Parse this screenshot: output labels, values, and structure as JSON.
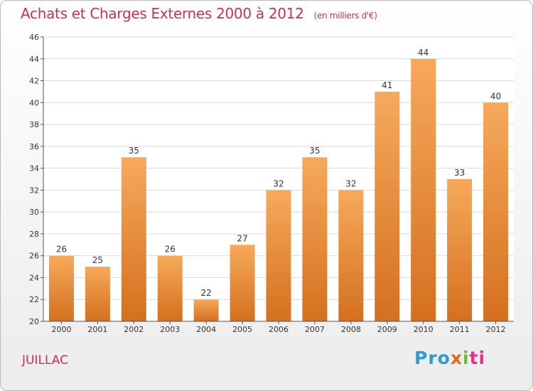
{
  "header": {
    "title": "Achats et Charges Externes 2000 à 2012",
    "unit": "(en milliers d'€)"
  },
  "footer": {
    "commune": "JUILLAC",
    "logo_parts": [
      "Pro",
      "x",
      "i",
      "ti"
    ]
  },
  "colors": {
    "title": "#d0304a",
    "bar_light": "#f7a95b",
    "bar_dark": "#d4701f",
    "grid": "#d9d9d9"
  },
  "chart_data": {
    "type": "bar",
    "categories": [
      "2000",
      "2001",
      "2002",
      "2003",
      "2004",
      "2005",
      "2006",
      "2007",
      "2008",
      "2009",
      "2010",
      "2011",
      "2012"
    ],
    "values": [
      26,
      25,
      35,
      26,
      22,
      27,
      32,
      35,
      32,
      41,
      44,
      33,
      40
    ],
    "ylim": [
      20,
      46
    ],
    "yticks": [
      20,
      22,
      24,
      26,
      28,
      30,
      32,
      34,
      36,
      38,
      40,
      42,
      44,
      46
    ],
    "grid": true,
    "data_labels": true
  }
}
